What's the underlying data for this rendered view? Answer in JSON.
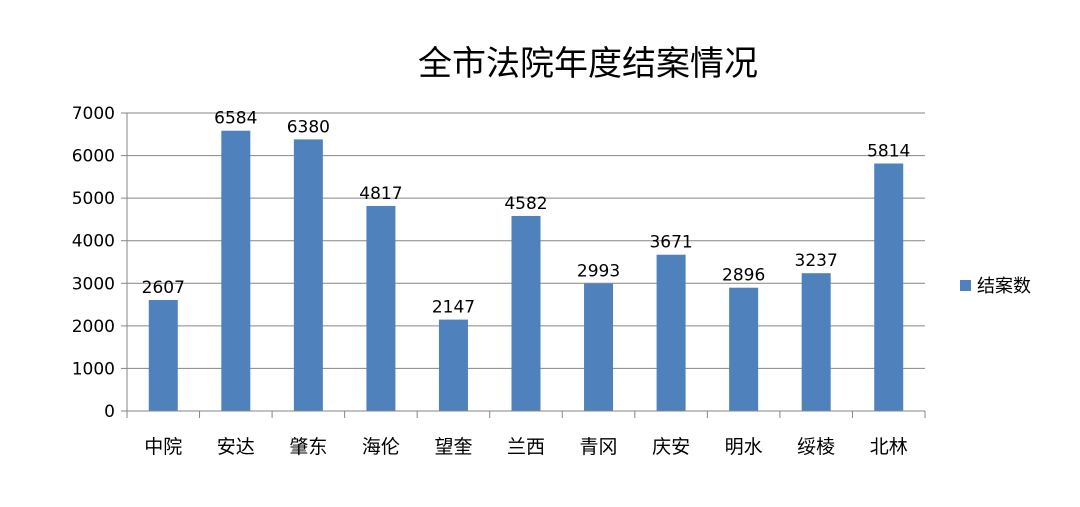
{
  "chart_data": {
    "type": "bar",
    "title": "全市法院年度结案情况",
    "categories": [
      "中院",
      "安达",
      "肇东",
      "海伦",
      "望奎",
      "兰西",
      "青冈",
      "庆安",
      "明水",
      "绥棱",
      "北林"
    ],
    "series": [
      {
        "name": "结案数",
        "values": [
          2607,
          6584,
          6380,
          4817,
          2147,
          4582,
          2993,
          3671,
          2896,
          3237,
          5814
        ],
        "color": "#4f81bd"
      }
    ],
    "ylim": [
      0,
      7000
    ],
    "yticks": [
      0,
      1000,
      2000,
      3000,
      4000,
      5000,
      6000,
      7000
    ],
    "grid": true,
    "legend": "right",
    "data_labels": true
  }
}
